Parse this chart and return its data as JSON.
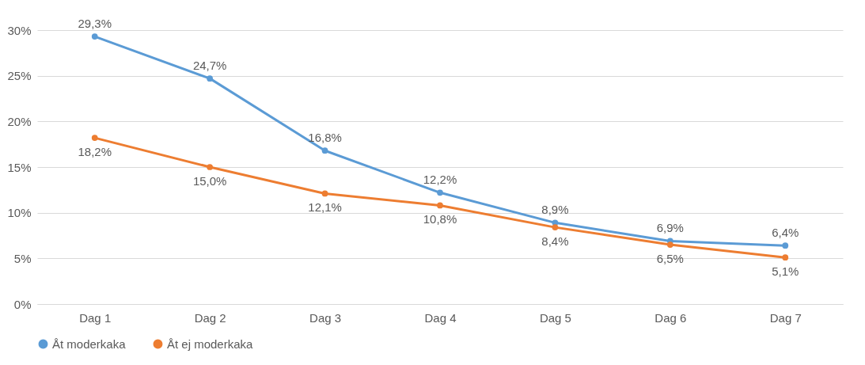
{
  "chart_data": {
    "type": "line",
    "categories": [
      "Dag 1",
      "Dag 2",
      "Dag 3",
      "Dag 4",
      "Dag 5",
      "Dag 6",
      "Dag 7"
    ],
    "series": [
      {
        "name": "Åt moderkaka",
        "color": "#5b9bd5",
        "values": [
          29.3,
          24.7,
          16.8,
          12.2,
          8.9,
          6.9,
          6.4
        ],
        "value_labels": [
          "29,3%",
          "24,7%",
          "16,8%",
          "12,2%",
          "8,9%",
          "6,9%",
          "6,4%"
        ]
      },
      {
        "name": "Åt ej moderkaka",
        "color": "#ed7d31",
        "values": [
          18.2,
          15.0,
          12.1,
          10.8,
          8.4,
          6.5,
          5.1
        ],
        "value_labels": [
          "18,2%",
          "15,0%",
          "12,1%",
          "10,8%",
          "8,4%",
          "6,5%",
          "5,1%"
        ]
      }
    ],
    "ylim": [
      0,
      30
    ],
    "yticks": [
      {
        "value": 0,
        "label": "0%"
      },
      {
        "value": 5,
        "label": "5%"
      },
      {
        "value": 10,
        "label": "10%"
      },
      {
        "value": 15,
        "label": "15%"
      },
      {
        "value": 20,
        "label": "20%"
      },
      {
        "value": 25,
        "label": "25%"
      },
      {
        "value": 30,
        "label": "30%"
      }
    ],
    "grid": "y",
    "legend": "bottom",
    "marker": "circle",
    "line_style": "solid"
  }
}
